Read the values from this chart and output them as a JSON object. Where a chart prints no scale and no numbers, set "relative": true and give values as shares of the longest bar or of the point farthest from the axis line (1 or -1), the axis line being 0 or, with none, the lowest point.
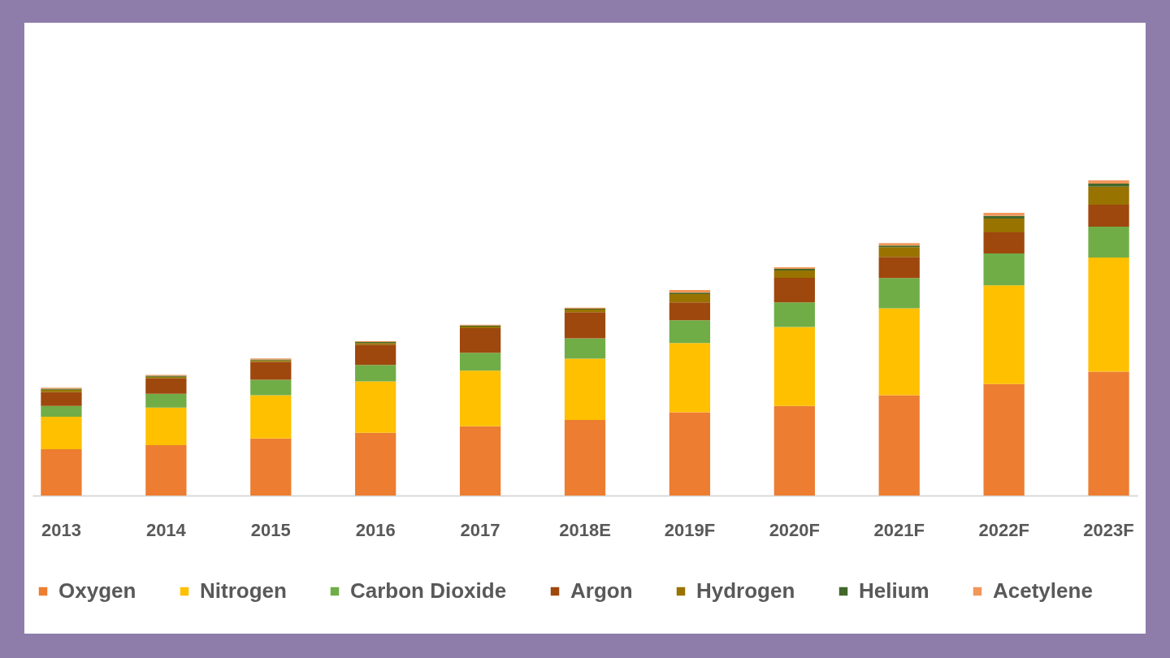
{
  "chart_data": {
    "type": "bar",
    "stacked": true,
    "relative": true,
    "legend": "bottom",
    "categories": [
      "2013",
      "2014",
      "2015",
      "2016",
      "2017",
      "2018E",
      "2019F",
      "2020F",
      "2021F",
      "2022F",
      "2023F"
    ],
    "series": [
      {
        "name": "Oxygen",
        "color": "#ed7d31",
        "values": [
          0.147,
          0.16,
          0.181,
          0.199,
          0.22,
          0.24,
          0.264,
          0.284,
          0.318,
          0.354,
          0.393
        ]
      },
      {
        "name": "Nitrogen",
        "color": "#ffc000",
        "values": [
          0.103,
          0.119,
          0.137,
          0.163,
          0.176,
          0.194,
          0.22,
          0.251,
          0.276,
          0.313,
          0.362
        ]
      },
      {
        "name": "Carbon Dioxide",
        "color": "#70ad47",
        "values": [
          0.034,
          0.044,
          0.049,
          0.052,
          0.057,
          0.065,
          0.072,
          0.078,
          0.096,
          0.101,
          0.098
        ]
      },
      {
        "name": "Argon",
        "color": "#9e480e",
        "values": [
          0.044,
          0.049,
          0.057,
          0.065,
          0.078,
          0.083,
          0.057,
          0.078,
          0.067,
          0.067,
          0.07
        ]
      },
      {
        "name": "Hydrogen",
        "color": "#997300",
        "values": [
          0.008,
          0.005,
          0.005,
          0.005,
          0.005,
          0.008,
          0.026,
          0.023,
          0.031,
          0.044,
          0.057
        ]
      },
      {
        "name": "Helium",
        "color": "#43682b",
        "values": [
          0.003,
          0.003,
          0.003,
          0.003,
          0.003,
          0.003,
          0.005,
          0.005,
          0.005,
          0.008,
          0.01
        ]
      },
      {
        "name": "Acetylene",
        "color": "#f1975a",
        "values": [
          0.003,
          0.003,
          0.003,
          0.003,
          0.003,
          0.003,
          0.008,
          0.005,
          0.008,
          0.01,
          0.01
        ]
      }
    ]
  }
}
